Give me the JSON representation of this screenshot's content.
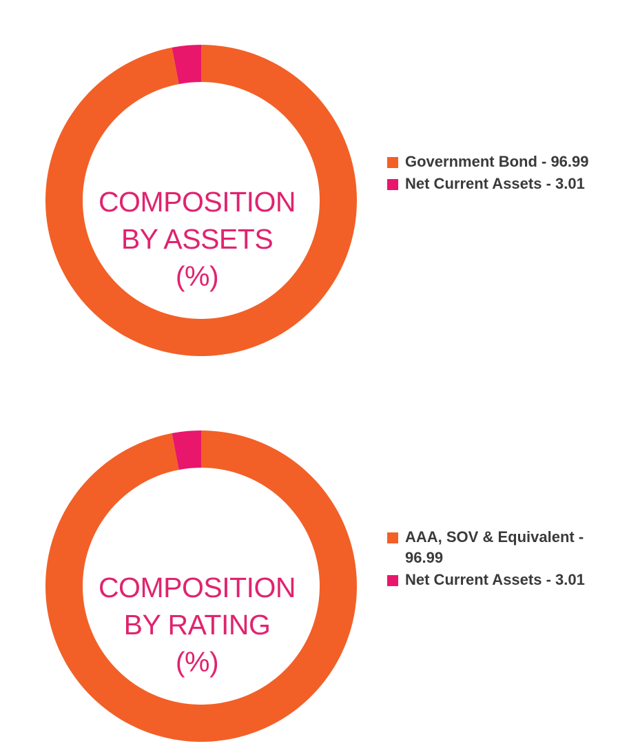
{
  "colors": {
    "orange": "#f26027",
    "pink": "#e8176b",
    "title": "#e0236f",
    "legend_text": "#3a3a3a"
  },
  "charts": [
    {
      "title_lines": [
        "COMPOSITION",
        "BY ASSETS",
        "(%)"
      ],
      "legend": [
        {
          "label": "Government Bond - 96.99",
          "color": "#f26027"
        },
        {
          "label": "Net Current Assets - 3.01",
          "color": "#e8176b"
        }
      ]
    },
    {
      "title_lines": [
        "COMPOSITION",
        "BY RATING",
        "(%)"
      ],
      "legend": [
        {
          "label": "AAA, SOV & Equivalent - 96.99",
          "color": "#f26027"
        },
        {
          "label": "Net Current Assets - 3.01",
          "color": "#e8176b"
        }
      ]
    }
  ],
  "chart_data": [
    {
      "type": "pie",
      "title": "COMPOSITION BY ASSETS (%)",
      "categories": [
        "Government Bond",
        "Net Current Assets"
      ],
      "values": [
        96.99,
        3.01
      ],
      "colors": [
        "#f26027",
        "#e8176b"
      ],
      "legend_position": "right"
    },
    {
      "type": "pie",
      "title": "COMPOSITION BY RATING (%)",
      "categories": [
        "AAA, SOV & Equivalent",
        "Net Current Assets"
      ],
      "values": [
        96.99,
        3.01
      ],
      "colors": [
        "#f26027",
        "#e8176b"
      ],
      "legend_position": "right"
    }
  ]
}
